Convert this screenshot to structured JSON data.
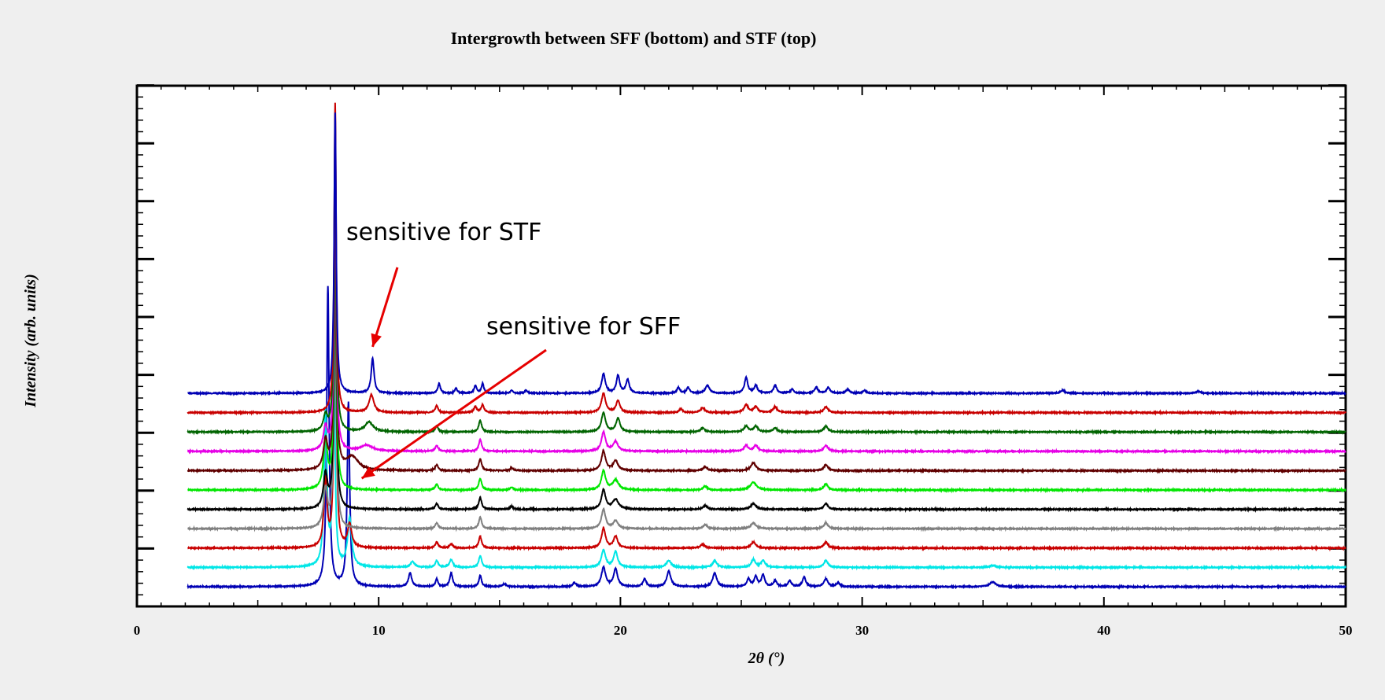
{
  "chart_data": {
    "type": "line",
    "title": "Intergrowth between SFF (bottom) and STF (top)",
    "xlabel": "2θ (°)",
    "ylabel": "Intensity (arb. units)",
    "xlim": [
      0,
      50
    ],
    "xticks": [
      "0",
      "10",
      "20",
      "30",
      "40",
      "50"
    ],
    "y_tick_labels_shown": false,
    "grid": false,
    "legend": "none",
    "x_range_of_data": [
      2.1,
      50
    ],
    "stacked_offsets": [
      0,
      1,
      2,
      3,
      4,
      5,
      6,
      7,
      8,
      9,
      10
    ],
    "series": [
      {
        "color": "#0000b4",
        "offset": 0,
        "sharp_main": true,
        "peaks": [
          [
            7.9,
            15.5,
            0.06
          ],
          [
            8.75,
            9.5,
            0.06
          ],
          [
            11.3,
            0.7,
            0.08
          ],
          [
            12.4,
            0.4,
            0.06
          ],
          [
            13.0,
            0.7,
            0.07
          ],
          [
            14.2,
            0.6,
            0.06
          ],
          [
            15.2,
            0.15,
            0.08
          ],
          [
            18.1,
            0.2,
            0.08
          ],
          [
            19.3,
            1.0,
            0.1
          ],
          [
            19.8,
            0.9,
            0.1
          ],
          [
            21.0,
            0.4,
            0.08
          ],
          [
            22.0,
            0.8,
            0.1
          ],
          [
            23.9,
            0.7,
            0.1
          ],
          [
            25.3,
            0.4,
            0.08
          ],
          [
            25.6,
            0.5,
            0.08
          ],
          [
            25.9,
            0.6,
            0.08
          ],
          [
            26.4,
            0.3,
            0.08
          ],
          [
            27.0,
            0.3,
            0.08
          ],
          [
            27.6,
            0.5,
            0.08
          ],
          [
            28.5,
            0.4,
            0.1
          ],
          [
            29.0,
            0.2,
            0.08
          ],
          [
            35.4,
            0.25,
            0.15
          ]
        ]
      },
      {
        "color": "#00e6e6",
        "offset": 1,
        "sharp_main": false,
        "peaks": [
          [
            7.8,
            8.0,
            0.07
          ],
          [
            8.15,
            12.0,
            0.05
          ],
          [
            8.8,
            2.5,
            0.1
          ],
          [
            11.4,
            0.3,
            0.1
          ],
          [
            12.4,
            0.35,
            0.07
          ],
          [
            13.0,
            0.4,
            0.08
          ],
          [
            14.2,
            0.6,
            0.07
          ],
          [
            19.3,
            0.9,
            0.1
          ],
          [
            19.8,
            0.8,
            0.1
          ],
          [
            22.0,
            0.35,
            0.12
          ],
          [
            23.9,
            0.35,
            0.1
          ],
          [
            25.5,
            0.4,
            0.1
          ],
          [
            25.9,
            0.35,
            0.1
          ],
          [
            28.5,
            0.35,
            0.1
          ],
          [
            35.4,
            0.1,
            0.15
          ]
        ]
      },
      {
        "color": "#c80000",
        "offset": 2,
        "sharp_main": false,
        "peaks": [
          [
            7.8,
            3.5,
            0.08
          ],
          [
            8.2,
            16.0,
            0.05
          ],
          [
            8.8,
            1.2,
            0.1
          ],
          [
            12.4,
            0.3,
            0.07
          ],
          [
            13.0,
            0.2,
            0.08
          ],
          [
            14.2,
            0.6,
            0.07
          ],
          [
            19.3,
            1.0,
            0.1
          ],
          [
            19.8,
            0.6,
            0.1
          ],
          [
            23.4,
            0.2,
            0.1
          ],
          [
            25.5,
            0.3,
            0.12
          ],
          [
            28.5,
            0.3,
            0.1
          ]
        ]
      },
      {
        "color": "#808080",
        "offset": 3,
        "sharp_main": false,
        "peaks": [
          [
            7.8,
            2.0,
            0.1
          ],
          [
            8.2,
            16.0,
            0.05
          ],
          [
            12.4,
            0.3,
            0.07
          ],
          [
            14.2,
            0.6,
            0.07
          ],
          [
            19.3,
            1.0,
            0.1
          ],
          [
            19.8,
            0.4,
            0.12
          ],
          [
            23.5,
            0.2,
            0.1
          ],
          [
            25.5,
            0.3,
            0.12
          ],
          [
            28.5,
            0.3,
            0.1
          ]
        ]
      },
      {
        "color": "#000000",
        "offset": 4,
        "sharp_main": false,
        "peaks": [
          [
            7.8,
            1.8,
            0.1
          ],
          [
            8.2,
            16.0,
            0.05
          ],
          [
            12.4,
            0.3,
            0.07
          ],
          [
            14.2,
            0.6,
            0.07
          ],
          [
            15.5,
            0.15,
            0.07
          ],
          [
            19.3,
            1.0,
            0.1
          ],
          [
            19.8,
            0.5,
            0.15
          ],
          [
            23.5,
            0.2,
            0.1
          ],
          [
            25.5,
            0.3,
            0.12
          ],
          [
            28.5,
            0.3,
            0.1
          ]
        ]
      },
      {
        "color": "#00e600",
        "offset": 5,
        "sharp_main": false,
        "peaks": [
          [
            7.8,
            2.5,
            0.1
          ],
          [
            8.2,
            16.0,
            0.05
          ],
          [
            12.4,
            0.3,
            0.07
          ],
          [
            14.2,
            0.6,
            0.07
          ],
          [
            15.5,
            0.15,
            0.07
          ],
          [
            19.3,
            1.0,
            0.1
          ],
          [
            19.8,
            0.5,
            0.15
          ],
          [
            23.5,
            0.2,
            0.1
          ],
          [
            25.5,
            0.4,
            0.15
          ],
          [
            28.5,
            0.3,
            0.1
          ]
        ]
      },
      {
        "color": "#600000",
        "offset": 6,
        "sharp_main": false,
        "peaks": [
          [
            7.8,
            1.5,
            0.1
          ],
          [
            8.2,
            16.0,
            0.05
          ],
          [
            8.9,
            0.7,
            0.3
          ],
          [
            12.4,
            0.3,
            0.07
          ],
          [
            14.2,
            0.6,
            0.07
          ],
          [
            15.5,
            0.15,
            0.07
          ],
          [
            19.3,
            1.0,
            0.1
          ],
          [
            19.8,
            0.5,
            0.12
          ],
          [
            23.5,
            0.2,
            0.1
          ],
          [
            25.5,
            0.4,
            0.12
          ],
          [
            28.5,
            0.3,
            0.1
          ]
        ]
      },
      {
        "color": "#e600e6",
        "offset": 7,
        "sharp_main": false,
        "peaks": [
          [
            7.8,
            1.2,
            0.1
          ],
          [
            8.2,
            16.0,
            0.05
          ],
          [
            9.5,
            0.3,
            0.3
          ],
          [
            12.4,
            0.3,
            0.07
          ],
          [
            14.2,
            0.6,
            0.07
          ],
          [
            19.3,
            1.0,
            0.1
          ],
          [
            19.8,
            0.5,
            0.12
          ],
          [
            25.2,
            0.3,
            0.1
          ],
          [
            25.6,
            0.3,
            0.1
          ],
          [
            28.5,
            0.3,
            0.1
          ]
        ]
      },
      {
        "color": "#006400",
        "offset": 8,
        "sharp_main": false,
        "peaks": [
          [
            7.8,
            0.8,
            0.1
          ],
          [
            8.2,
            16.0,
            0.05
          ],
          [
            9.6,
            0.5,
            0.2
          ],
          [
            12.4,
            0.3,
            0.07
          ],
          [
            14.2,
            0.6,
            0.07
          ],
          [
            19.3,
            1.0,
            0.1
          ],
          [
            19.9,
            0.7,
            0.1
          ],
          [
            23.4,
            0.2,
            0.1
          ],
          [
            25.2,
            0.3,
            0.1
          ],
          [
            25.6,
            0.3,
            0.1
          ],
          [
            26.4,
            0.2,
            0.1
          ],
          [
            28.5,
            0.3,
            0.1
          ]
        ]
      },
      {
        "color": "#c80000",
        "offset": 9,
        "sharp_main": false,
        "peaks": [
          [
            8.2,
            16.0,
            0.05
          ],
          [
            9.7,
            0.9,
            0.12
          ],
          [
            12.4,
            0.35,
            0.07
          ],
          [
            14.0,
            0.3,
            0.07
          ],
          [
            14.3,
            0.4,
            0.07
          ],
          [
            19.3,
            1.0,
            0.1
          ],
          [
            19.9,
            0.6,
            0.1
          ],
          [
            22.5,
            0.2,
            0.08
          ],
          [
            23.4,
            0.25,
            0.1
          ],
          [
            25.2,
            0.4,
            0.1
          ],
          [
            25.6,
            0.3,
            0.1
          ],
          [
            26.4,
            0.3,
            0.1
          ],
          [
            28.5,
            0.3,
            0.1
          ]
        ]
      },
      {
        "color": "#0000b4",
        "offset": 10,
        "sharp_main": false,
        "peaks": [
          [
            8.2,
            14.5,
            0.05
          ],
          [
            9.75,
            1.8,
            0.07
          ],
          [
            12.5,
            0.5,
            0.06
          ],
          [
            13.2,
            0.25,
            0.06
          ],
          [
            14.0,
            0.4,
            0.06
          ],
          [
            14.3,
            0.5,
            0.06
          ],
          [
            15.5,
            0.15,
            0.06
          ],
          [
            16.1,
            0.15,
            0.06
          ],
          [
            19.3,
            1.0,
            0.09
          ],
          [
            19.9,
            0.9,
            0.08
          ],
          [
            20.3,
            0.7,
            0.08
          ],
          [
            22.4,
            0.3,
            0.07
          ],
          [
            22.8,
            0.3,
            0.07
          ],
          [
            23.6,
            0.4,
            0.1
          ],
          [
            25.2,
            0.8,
            0.08
          ],
          [
            25.6,
            0.4,
            0.08
          ],
          [
            26.4,
            0.4,
            0.08
          ],
          [
            27.1,
            0.2,
            0.08
          ],
          [
            28.1,
            0.3,
            0.08
          ],
          [
            28.6,
            0.3,
            0.08
          ],
          [
            29.4,
            0.2,
            0.08
          ],
          [
            30.1,
            0.15,
            0.08
          ],
          [
            38.3,
            0.15,
            0.1
          ],
          [
            43.9,
            0.1,
            0.1
          ]
        ]
      }
    ],
    "annotations": [
      {
        "text": "sensitive for STF",
        "x": 9.0,
        "y_offset": 18.0,
        "arrow_to": [
          9.75,
          12.4
        ]
      },
      {
        "text": "sensitive for SFF",
        "x": 14.9,
        "y_offset": 13.0,
        "arrow_to": [
          9.3,
          5.6
        ]
      }
    ]
  }
}
